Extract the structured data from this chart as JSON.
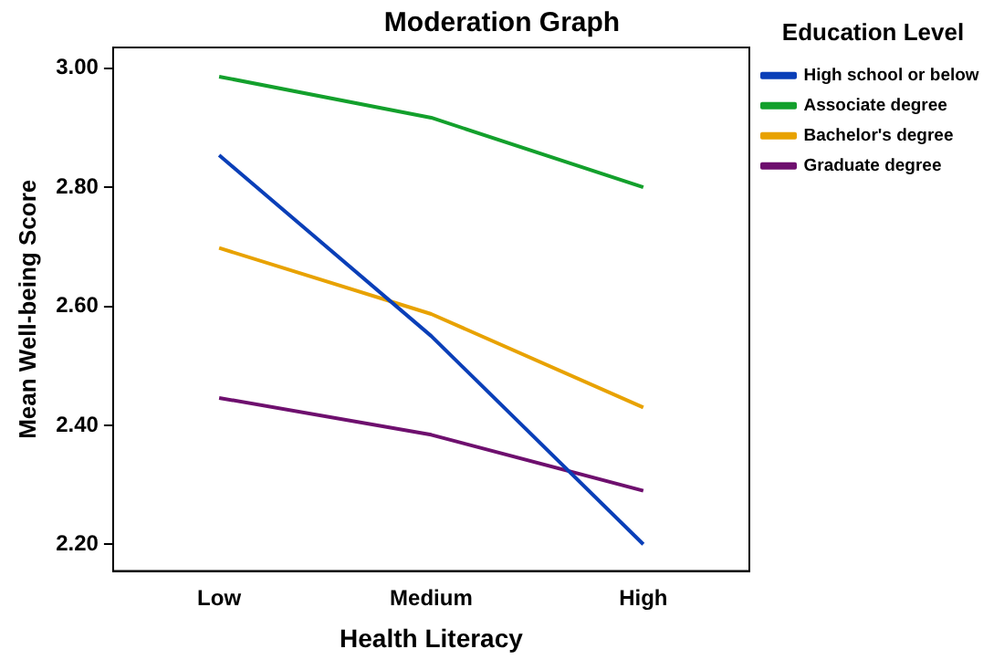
{
  "chart_data": {
    "type": "line",
    "title": "Moderation Graph",
    "xlabel": "Health Literacy",
    "ylabel": "Mean Well-being Score",
    "legend_title": "Education Level",
    "categories": [
      "Low",
      "Medium",
      "High"
    ],
    "series": [
      {
        "name": "High school or below",
        "color": "#0a3fb8",
        "values": [
          2.854,
          2.55,
          2.2
        ]
      },
      {
        "name": "Associate degree",
        "color": "#13a02c",
        "values": [
          2.986,
          2.917,
          2.8
        ]
      },
      {
        "name": "Bachelor's degree",
        "color": "#e8a200",
        "values": [
          2.698,
          2.587,
          2.43
        ]
      },
      {
        "name": "Graduate degree",
        "color": "#6e0f6e",
        "values": [
          2.446,
          2.384,
          2.29
        ]
      }
    ],
    "ylim": [
      2.155,
      3.035
    ],
    "yticks": [
      {
        "value": 2.2,
        "label": "2.20"
      },
      {
        "value": 2.4,
        "label": "2.40"
      },
      {
        "value": 2.6,
        "label": "2.60"
      },
      {
        "value": 2.8,
        "label": "2.80"
      },
      {
        "value": 3.0,
        "label": "3.00"
      }
    ],
    "grid": false,
    "legend": "right",
    "marker": "none",
    "line_style": "solid"
  }
}
